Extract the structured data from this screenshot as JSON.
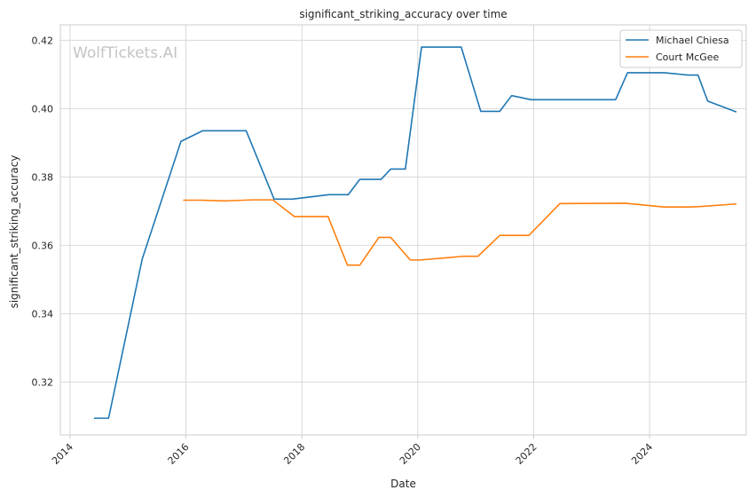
{
  "chart_data": {
    "type": "line",
    "title": "significant_striking_accuracy over time",
    "xlabel": "Date",
    "ylabel": "significant_striking_accuracy",
    "watermark": "WolfTickets.AI",
    "xlim": [
      "2013-11-01",
      "2025-09-01"
    ],
    "ylim": [
      0.3045,
      0.4245
    ],
    "x_ticks": [
      "2014",
      "2016",
      "2018",
      "2020",
      "2022",
      "2024"
    ],
    "y_ticks": [
      0.32,
      0.34,
      0.36,
      0.38,
      0.4,
      0.42
    ],
    "y_tick_labels": [
      "0.32",
      "0.34",
      "0.36",
      "0.38",
      "0.40",
      "0.42"
    ],
    "grid": true,
    "legend_position": "top-right",
    "series": [
      {
        "name": "Michael Chiesa",
        "color": "#1f77b4",
        "points": [
          [
            "2014-06-01",
            0.3094
          ],
          [
            "2014-09-01",
            0.3094
          ],
          [
            "2015-04-01",
            0.356
          ],
          [
            "2015-12-01",
            0.3904
          ],
          [
            "2016-04-15",
            0.3935
          ],
          [
            "2016-09-01",
            0.3935
          ],
          [
            "2017-01-15",
            0.3935
          ],
          [
            "2017-07-10",
            0.3735
          ],
          [
            "2017-11-01",
            0.3735
          ],
          [
            "2018-06-20",
            0.3748
          ],
          [
            "2018-10-20",
            0.3748
          ],
          [
            "2019-01-01",
            0.3793
          ],
          [
            "2019-05-15",
            0.3793
          ],
          [
            "2019-07-15",
            0.3823
          ],
          [
            "2019-10-15",
            0.3823
          ],
          [
            "2020-01-25",
            0.418
          ],
          [
            "2020-10-01",
            0.418
          ],
          [
            "2021-02-01",
            0.3992
          ],
          [
            "2021-06-01",
            0.3992
          ],
          [
            "2021-08-15",
            0.4038
          ],
          [
            "2021-12-15",
            0.4026
          ],
          [
            "2023-06-01",
            0.4026
          ],
          [
            "2023-08-15",
            0.4105
          ],
          [
            "2024-04-01",
            0.4105
          ],
          [
            "2024-09-01",
            0.4098
          ],
          [
            "2024-11-01",
            0.4098
          ],
          [
            "2025-01-01",
            0.4022
          ],
          [
            "2025-07-01",
            0.399
          ]
        ]
      },
      {
        "name": "Court McGee",
        "color": "#ff7f0e",
        "points": [
          [
            "2015-12-15",
            0.3732
          ],
          [
            "2016-04-01",
            0.3732
          ],
          [
            "2016-09-01",
            0.373
          ],
          [
            "2017-03-01",
            0.3733
          ],
          [
            "2017-07-01",
            0.3733
          ],
          [
            "2017-11-15",
            0.3684
          ],
          [
            "2018-06-15",
            0.3684
          ],
          [
            "2018-10-15",
            0.3542
          ],
          [
            "2019-01-01",
            0.3542
          ],
          [
            "2019-05-01",
            0.3623
          ],
          [
            "2019-07-15",
            0.3623
          ],
          [
            "2019-11-15",
            0.3557
          ],
          [
            "2020-01-15",
            0.3557
          ],
          [
            "2020-07-15",
            0.3564
          ],
          [
            "2020-10-15",
            0.3568
          ],
          [
            "2021-01-15",
            0.3568
          ],
          [
            "2021-06-01",
            0.3629
          ],
          [
            "2021-12-01",
            0.3629
          ],
          [
            "2022-02-01",
            0.3658
          ],
          [
            "2022-06-15",
            0.3722
          ],
          [
            "2023-08-01",
            0.3723
          ],
          [
            "2024-04-01",
            0.3712
          ],
          [
            "2024-09-01",
            0.3712
          ],
          [
            "2024-11-01",
            0.3713
          ],
          [
            "2025-07-01",
            0.3721
          ]
        ]
      }
    ]
  }
}
